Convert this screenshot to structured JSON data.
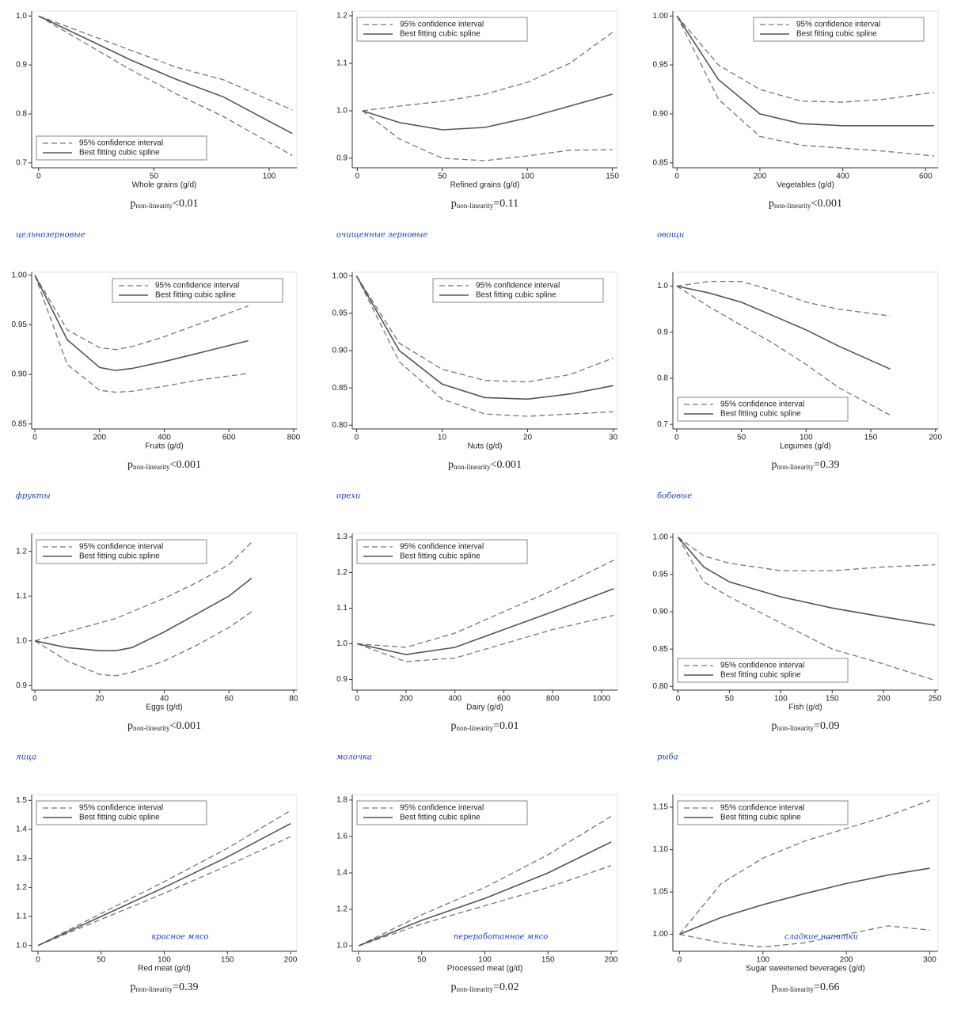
{
  "chart_data": [
    {
      "type": "line",
      "annotation": "цельнозерновые",
      "xlabel": "Whole grains (g/d)",
      "p_label": "p",
      "p_subscript": "non-linearity",
      "p_value": "<0.01",
      "legend": "bottom-left",
      "x": [
        0,
        20,
        40,
        60,
        80,
        110
      ],
      "xlim": [
        -3,
        112
      ],
      "xticks": [
        0,
        50,
        100
      ],
      "ylim": [
        0.69,
        1.01
      ],
      "yticks": [
        0.7,
        0.8,
        0.9,
        {
          "value": 1,
          "label": "1.0"
        }
      ],
      "series": [
        {
          "name": "Best fitting cubic spline",
          "color": "#555555",
          "values": [
            1,
            0.955,
            0.91,
            0.87,
            0.835,
            0.76
          ]
        }
      ],
      "ci": {
        "name": "95% confidence interval",
        "color": "#777777",
        "upper": [
          1,
          0.965,
          0.93,
          0.895,
          0.87,
          0.808
        ],
        "lower": [
          1,
          0.945,
          0.89,
          0.84,
          0.795,
          0.715
        ]
      }
    },
    {
      "type": "line",
      "annotation": "очищенные зерновые",
      "xlabel": "Refined grains (g/d)",
      "p_label": "p",
      "p_subscript": "non-linearity",
      "p_value": "=0.11",
      "legend": "top-left",
      "x": [
        3,
        25,
        50,
        75,
        100,
        125,
        150
      ],
      "xlim": [
        -3,
        153
      ],
      "xticks": [
        0,
        50,
        100,
        150
      ],
      "ylim": [
        0.88,
        1.21
      ],
      "yticks": [
        0.9,
        {
          "value": 1,
          "label": "1.0"
        },
        1.1,
        1.2
      ],
      "series": [
        {
          "name": "Best fitting cubic spline",
          "color": "#555555",
          "values": [
            1,
            0.975,
            0.96,
            0.965,
            0.985,
            1.01,
            1.035
          ]
        }
      ],
      "ci": {
        "name": "95% confidence interval",
        "color": "#777777",
        "upper": [
          1,
          1.01,
          1.02,
          1.035,
          1.06,
          1.1,
          1.165
        ],
        "lower": [
          1,
          0.94,
          0.9,
          0.895,
          0.905,
          0.917,
          0.918
        ]
      }
    },
    {
      "type": "line",
      "annotation": "овощи",
      "xlabel": "Vegetables (g/d)",
      "p_label": "p",
      "p_subscript": "non-linearity",
      "p_value": "<0.001",
      "legend": "top-right",
      "x": [
        0,
        100,
        200,
        300,
        400,
        500,
        620
      ],
      "xlim": [
        -10,
        630
      ],
      "xticks": [
        0,
        200,
        400,
        600
      ],
      "ylim": [
        0.845,
        1.005
      ],
      "yticks": [
        0.85,
        {
          "value": 0.9,
          "label": "0.90"
        },
        0.95,
        {
          "value": 1,
          "label": "1.00"
        }
      ],
      "series": [
        {
          "name": "Best fitting cubic spline",
          "color": "#555555",
          "values": [
            1,
            0.935,
            0.9,
            0.89,
            0.888,
            0.888,
            0.888
          ]
        }
      ],
      "ci": {
        "name": "95% confidence interval",
        "color": "#777777",
        "upper": [
          1,
          0.95,
          0.925,
          0.913,
          0.912,
          0.915,
          0.922
        ],
        "lower": [
          1,
          0.915,
          0.877,
          0.868,
          0.865,
          0.862,
          0.857
        ]
      }
    },
    {
      "type": "line",
      "annotation": "фрукты",
      "xlabel": "Fruits (g/d)",
      "p_label": "p",
      "p_subscript": "non-linearity",
      "p_value": "<0.001",
      "legend": "top-right",
      "x": [
        0,
        100,
        200,
        250,
        300,
        400,
        500,
        660
      ],
      "xlim": [
        -10,
        810
      ],
      "xticks": [
        0,
        200,
        400,
        600,
        800
      ],
      "ylim": [
        0.845,
        1.003
      ],
      "yticks": [
        0.85,
        {
          "value": 0.9,
          "label": "0.90"
        },
        0.95,
        {
          "value": 1,
          "label": "1.00"
        }
      ],
      "series": [
        {
          "name": "Best fitting cubic spline",
          "color": "#555555",
          "values": [
            1,
            0.935,
            0.907,
            0.904,
            0.906,
            0.913,
            0.921,
            0.934
          ]
        }
      ],
      "ci": {
        "name": "95% confidence interval",
        "color": "#777777",
        "upper": [
          1,
          0.945,
          0.927,
          0.925,
          0.928,
          0.938,
          0.95,
          0.969
        ],
        "lower": [
          1,
          0.91,
          0.884,
          0.882,
          0.883,
          0.888,
          0.894,
          0.901
        ]
      }
    },
    {
      "type": "line",
      "annotation": "орехи",
      "xlabel": "Nuts (g/d)",
      "p_label": "p",
      "p_subscript": "non-linearity",
      "p_value": "<0.001",
      "legend": "top-right",
      "x": [
        0,
        5,
        10,
        15,
        20,
        25,
        30
      ],
      "xlim": [
        -0.5,
        30.5
      ],
      "xticks": [
        0,
        10,
        20,
        30
      ],
      "ylim": [
        0.795,
        1.005
      ],
      "yticks": [
        {
          "value": 0.8,
          "label": "0.80"
        },
        0.85,
        {
          "value": 0.9,
          "label": "0.90"
        },
        0.95,
        {
          "value": 1,
          "label": "1.00"
        }
      ],
      "series": [
        {
          "name": "Best fitting cubic spline",
          "color": "#555555",
          "values": [
            1,
            0.9,
            0.855,
            0.837,
            0.835,
            0.842,
            0.853
          ]
        }
      ],
      "ci": {
        "name": "95% confidence interval",
        "color": "#777777",
        "upper": [
          1,
          0.91,
          0.875,
          0.86,
          0.858,
          0.868,
          0.89
        ],
        "lower": [
          1,
          0.885,
          0.835,
          0.815,
          0.812,
          0.815,
          0.818
        ]
      }
    },
    {
      "type": "line",
      "annotation": "бобовые",
      "xlabel": "Legumes (g/d)",
      "p_label": "p",
      "p_subscript": "non-linearity",
      "p_value": "=0.39",
      "legend": "bottom-left",
      "x": [
        0,
        25,
        50,
        75,
        100,
        125,
        165
      ],
      "xlim": [
        -3,
        202
      ],
      "xticks": [
        0,
        50,
        100,
        150,
        200
      ],
      "ylim": [
        0.69,
        1.03
      ],
      "yticks": [
        0.7,
        0.8,
        0.9,
        {
          "value": 1,
          "label": "1.0"
        }
      ],
      "series": [
        {
          "name": "Best fitting cubic spline",
          "color": "#555555",
          "values": [
            1,
            0.985,
            0.965,
            0.935,
            0.905,
            0.87,
            0.82
          ]
        }
      ],
      "ci": {
        "name": "95% confidence interval",
        "color": "#777777",
        "upper": [
          1,
          1.01,
          1.01,
          0.99,
          0.965,
          0.95,
          0.935
        ],
        "lower": [
          1,
          0.955,
          0.915,
          0.875,
          0.83,
          0.78,
          0.72
        ]
      }
    },
    {
      "type": "line",
      "annotation": "яйца",
      "xlabel": "Eggs (g/d)",
      "p_label": "p",
      "p_subscript": "non-linearity",
      "p_value": "<0.001",
      "legend": "top-left",
      "x": [
        0,
        10,
        20,
        25,
        30,
        40,
        50,
        60,
        67
      ],
      "xlim": [
        -1,
        81
      ],
      "xticks": [
        0,
        20,
        40,
        60,
        80
      ],
      "ylim": [
        0.89,
        1.24
      ],
      "yticks": [
        0.9,
        {
          "value": 1,
          "label": "1.0"
        },
        1.1,
        1.2
      ],
      "series": [
        {
          "name": "Best fitting cubic spline",
          "color": "#555555",
          "values": [
            1,
            0.985,
            0.978,
            0.978,
            0.985,
            1.02,
            1.06,
            1.1,
            1.14
          ]
        }
      ],
      "ci": {
        "name": "95% confidence interval",
        "color": "#777777",
        "upper": [
          1,
          1.02,
          1.04,
          1.05,
          1.065,
          1.095,
          1.13,
          1.17,
          1.22
        ],
        "lower": [
          1,
          0.955,
          0.925,
          0.922,
          0.93,
          0.955,
          0.99,
          1.03,
          1.065
        ]
      }
    },
    {
      "type": "line",
      "annotation": "молочка",
      "xlabel": "Dairy (g/d)",
      "p_label": "p",
      "p_subscript": "non-linearity",
      "p_value": "=0.01",
      "legend": "top-left",
      "x": [
        0,
        200,
        400,
        600,
        800,
        1050
      ],
      "xlim": [
        -20,
        1065
      ],
      "xticks": [
        0,
        200,
        400,
        600,
        800,
        1000
      ],
      "ylim": [
        0.87,
        1.31
      ],
      "yticks": [
        0.9,
        {
          "value": 1,
          "label": "1.0"
        },
        1.1,
        1.2,
        1.3
      ],
      "series": [
        {
          "name": "Best fitting cubic spline",
          "color": "#555555",
          "values": [
            1,
            0.97,
            0.99,
            1.04,
            1.09,
            1.155
          ]
        }
      ],
      "ci": {
        "name": "95% confidence interval",
        "color": "#777777",
        "upper": [
          1,
          0.99,
          1.03,
          1.09,
          1.15,
          1.235
        ],
        "lower": [
          1,
          0.95,
          0.96,
          1.0,
          1.04,
          1.08
        ]
      }
    },
    {
      "type": "line",
      "annotation": "рыба",
      "xlabel": "Fish (g/d)",
      "p_label": "p",
      "p_subscript": "non-linearity",
      "p_value": "=0.09",
      "legend": "bottom-left",
      "x": [
        0,
        25,
        50,
        100,
        150,
        200,
        250
      ],
      "xlim": [
        -5,
        253
      ],
      "xticks": [
        0,
        50,
        100,
        150,
        200,
        250
      ],
      "ylim": [
        0.795,
        1.005
      ],
      "yticks": [
        {
          "value": 0.8,
          "label": "0.80"
        },
        0.85,
        {
          "value": 0.9,
          "label": "0.90"
        },
        0.95,
        {
          "value": 1,
          "label": "1.00"
        }
      ],
      "series": [
        {
          "name": "Best fitting cubic spline",
          "color": "#555555",
          "values": [
            1,
            0.96,
            0.94,
            0.92,
            0.905,
            0.893,
            0.882
          ]
        }
      ],
      "ci": {
        "name": "95% confidence interval",
        "color": "#777777",
        "upper": [
          1,
          0.975,
          0.965,
          0.955,
          0.955,
          0.96,
          0.963
        ],
        "lower": [
          1,
          0.94,
          0.92,
          0.885,
          0.85,
          0.83,
          0.808
        ]
      }
    },
    {
      "type": "line",
      "annotation": "красное мясо",
      "xlabel": "Red meat (g/d)",
      "p_label": "p",
      "p_subscript": "non-linearity",
      "p_value": "=0.39",
      "legend": "top-left",
      "x": [
        0,
        50,
        100,
        150,
        200
      ],
      "xlim": [
        -5,
        205
      ],
      "xticks": [
        0,
        50,
        100,
        150,
        200
      ],
      "ylim": [
        0.98,
        1.52
      ],
      "yticks": [
        {
          "value": 1,
          "label": "1.0"
        },
        1.1,
        1.2,
        1.3,
        1.4,
        1.5
      ],
      "series": [
        {
          "name": "Best fitting cubic spline",
          "color": "#555555",
          "values": [
            1,
            1.1,
            1.2,
            1.305,
            1.42
          ]
        }
      ],
      "ci": {
        "name": "95% confidence interval",
        "color": "#777777",
        "upper": [
          1,
          1.11,
          1.22,
          1.335,
          1.465
        ],
        "lower": [
          1,
          1.09,
          1.18,
          1.275,
          1.375
        ]
      }
    },
    {
      "type": "line",
      "annotation": "переработанное мясо",
      "xlabel": "Processed meat (g/d)",
      "p_label": "p",
      "p_subscript": "non-linearity",
      "p_value": "=0.02",
      "legend": "top-left",
      "x": [
        0,
        50,
        100,
        150,
        200
      ],
      "xlim": [
        -5,
        205
      ],
      "xticks": [
        0,
        50,
        100,
        150,
        200
      ],
      "ylim": [
        0.97,
        1.83
      ],
      "yticks": [
        {
          "value": 1,
          "label": "1.0"
        },
        1.2,
        1.4,
        1.6,
        1.8
      ],
      "series": [
        {
          "name": "Best fitting cubic spline",
          "color": "#555555",
          "values": [
            1,
            1.14,
            1.26,
            1.4,
            1.57
          ]
        }
      ],
      "ci": {
        "name": "95% confidence interval",
        "color": "#777777",
        "upper": [
          1,
          1.17,
          1.32,
          1.5,
          1.71
        ],
        "lower": [
          1,
          1.12,
          1.22,
          1.32,
          1.44
        ]
      }
    },
    {
      "type": "line",
      "annotation": "сладкие напитки",
      "xlabel": "Sugar sweetened beverages (g/d)",
      "p_label": "p",
      "p_subscript": "non-linearity",
      "p_value": "=0.66",
      "legend": "top-left",
      "x": [
        0,
        50,
        100,
        150,
        200,
        250,
        300
      ],
      "xlim": [
        -8,
        310
      ],
      "xticks": [
        0,
        100,
        200,
        300
      ],
      "ylim": [
        0.98,
        1.165
      ],
      "yticks": [
        {
          "value": 1,
          "label": "1.00"
        },
        1.05,
        {
          "value": 1.1,
          "label": "1.10"
        },
        1.15
      ],
      "series": [
        {
          "name": "Best fitting cubic spline",
          "color": "#555555",
          "values": [
            1,
            1.02,
            1.035,
            1.048,
            1.06,
            1.07,
            1.078
          ]
        }
      ],
      "ci": {
        "name": "95% confidence interval",
        "color": "#777777",
        "upper": [
          1,
          1.06,
          1.09,
          1.11,
          1.125,
          1.14,
          1.158
        ],
        "lower": [
          1,
          0.99,
          0.985,
          0.99,
          1.0,
          1.01,
          1.005
        ]
      }
    }
  ]
}
